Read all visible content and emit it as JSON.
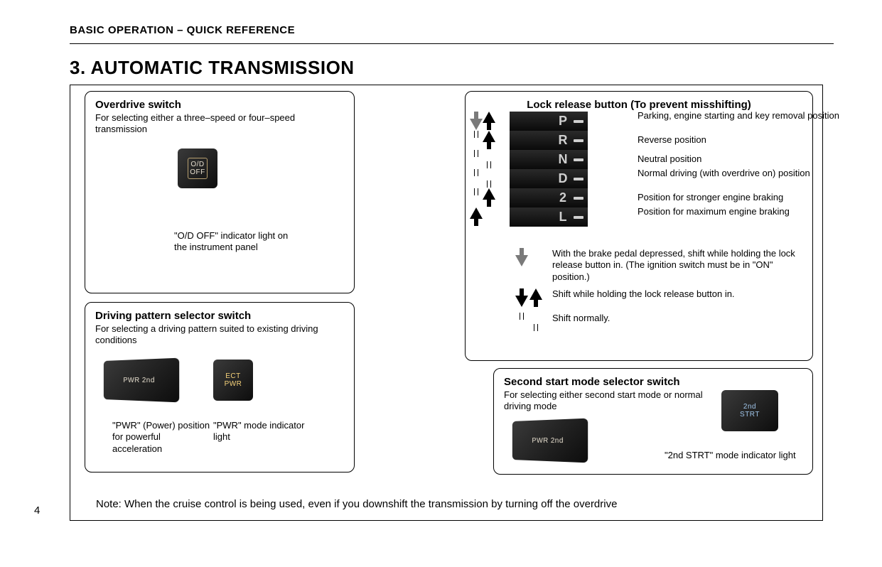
{
  "running_head": "BASIC OPERATION – QUICK REFERENCE",
  "section_title": "3.  AUTOMATIC TRANSMISSION",
  "page_number": "4",
  "note": "Note:   When the cruise control is being used, even if you downshift the transmission by turning off the overdrive",
  "overdrive": {
    "title": "Overdrive switch",
    "desc": "For selecting either a three–speed or four–speed transmission",
    "thumb_label": "O/D\nOFF",
    "caption": "\"O/D OFF\" indicator light on the instrument panel"
  },
  "driving": {
    "title": "Driving pattern selector switch",
    "desc": "For selecting a driving pattern suited to existing driving conditions",
    "thumb1_label": "PWR  2nd",
    "thumb2_label": "ECT\nPWR",
    "cap1": "\"PWR\" (Power) position for powerful acceleration",
    "cap2": "\"PWR\" mode indicator light"
  },
  "lock": {
    "title": "Lock release button (To prevent misshifting)",
    "gears": [
      {
        "letter": "P",
        "desc": "Parking, engine starting and key removal position",
        "left_dn": "gray",
        "left_up": "solid"
      },
      {
        "letter": "R",
        "desc": "Reverse position",
        "left_dn": "hollow",
        "left_up": "solid"
      },
      {
        "letter": "N",
        "desc": "Neutral position",
        "left_dn": "hollow",
        "left_up": "hollow"
      },
      {
        "letter": "D",
        "desc": "Normal driving (with overdrive on) position",
        "left_dn": "hollow",
        "left_up": "hollow"
      },
      {
        "letter": "2",
        "desc": "Position for stronger engine braking",
        "left_dn": "hollow",
        "left_up": "solid"
      },
      {
        "letter": "L",
        "desc": "Position for maximum engine braking",
        "left_dn": "",
        "left_up": "solid"
      }
    ],
    "legend": [
      {
        "sym": "gray-down",
        "txt": "With the brake pedal depressed, shift while holding the lock release button in. (The ignition switch must be in \"ON\" position.)"
      },
      {
        "sym": "solid-pair",
        "txt": "Shift while holding the lock release button in."
      },
      {
        "sym": "hollow-pair",
        "txt": "Shift normally."
      }
    ]
  },
  "second": {
    "title": "Second start mode selector switch",
    "desc": "For selecting either second start mode or normal driving mode",
    "cap": "\"2nd STRT\" mode indicator light",
    "thumb1_label": "PWR  2nd",
    "thumb2_label": "2nd\nSTRT"
  },
  "style": {
    "page_bg": "#ffffff",
    "text_color": "#000000",
    "title_fontsize": 26,
    "head_fontsize": 15,
    "callout_title_fontsize": 15,
    "callout_body_fontsize": 13,
    "callout_border_radius": 10,
    "frame_border": "#000000",
    "gear_panel_bg": "#1a1a1a",
    "gear_letter_color": "#cfcfcf",
    "thumb_gradient": [
      "#3a3a3a",
      "#0d0d0d"
    ],
    "console_gradient": [
      "#d6d6d6",
      "#b8b8b8",
      "#909090"
    ],
    "arrow_solid": "#000000",
    "arrow_gray": "#7a7a7a"
  }
}
